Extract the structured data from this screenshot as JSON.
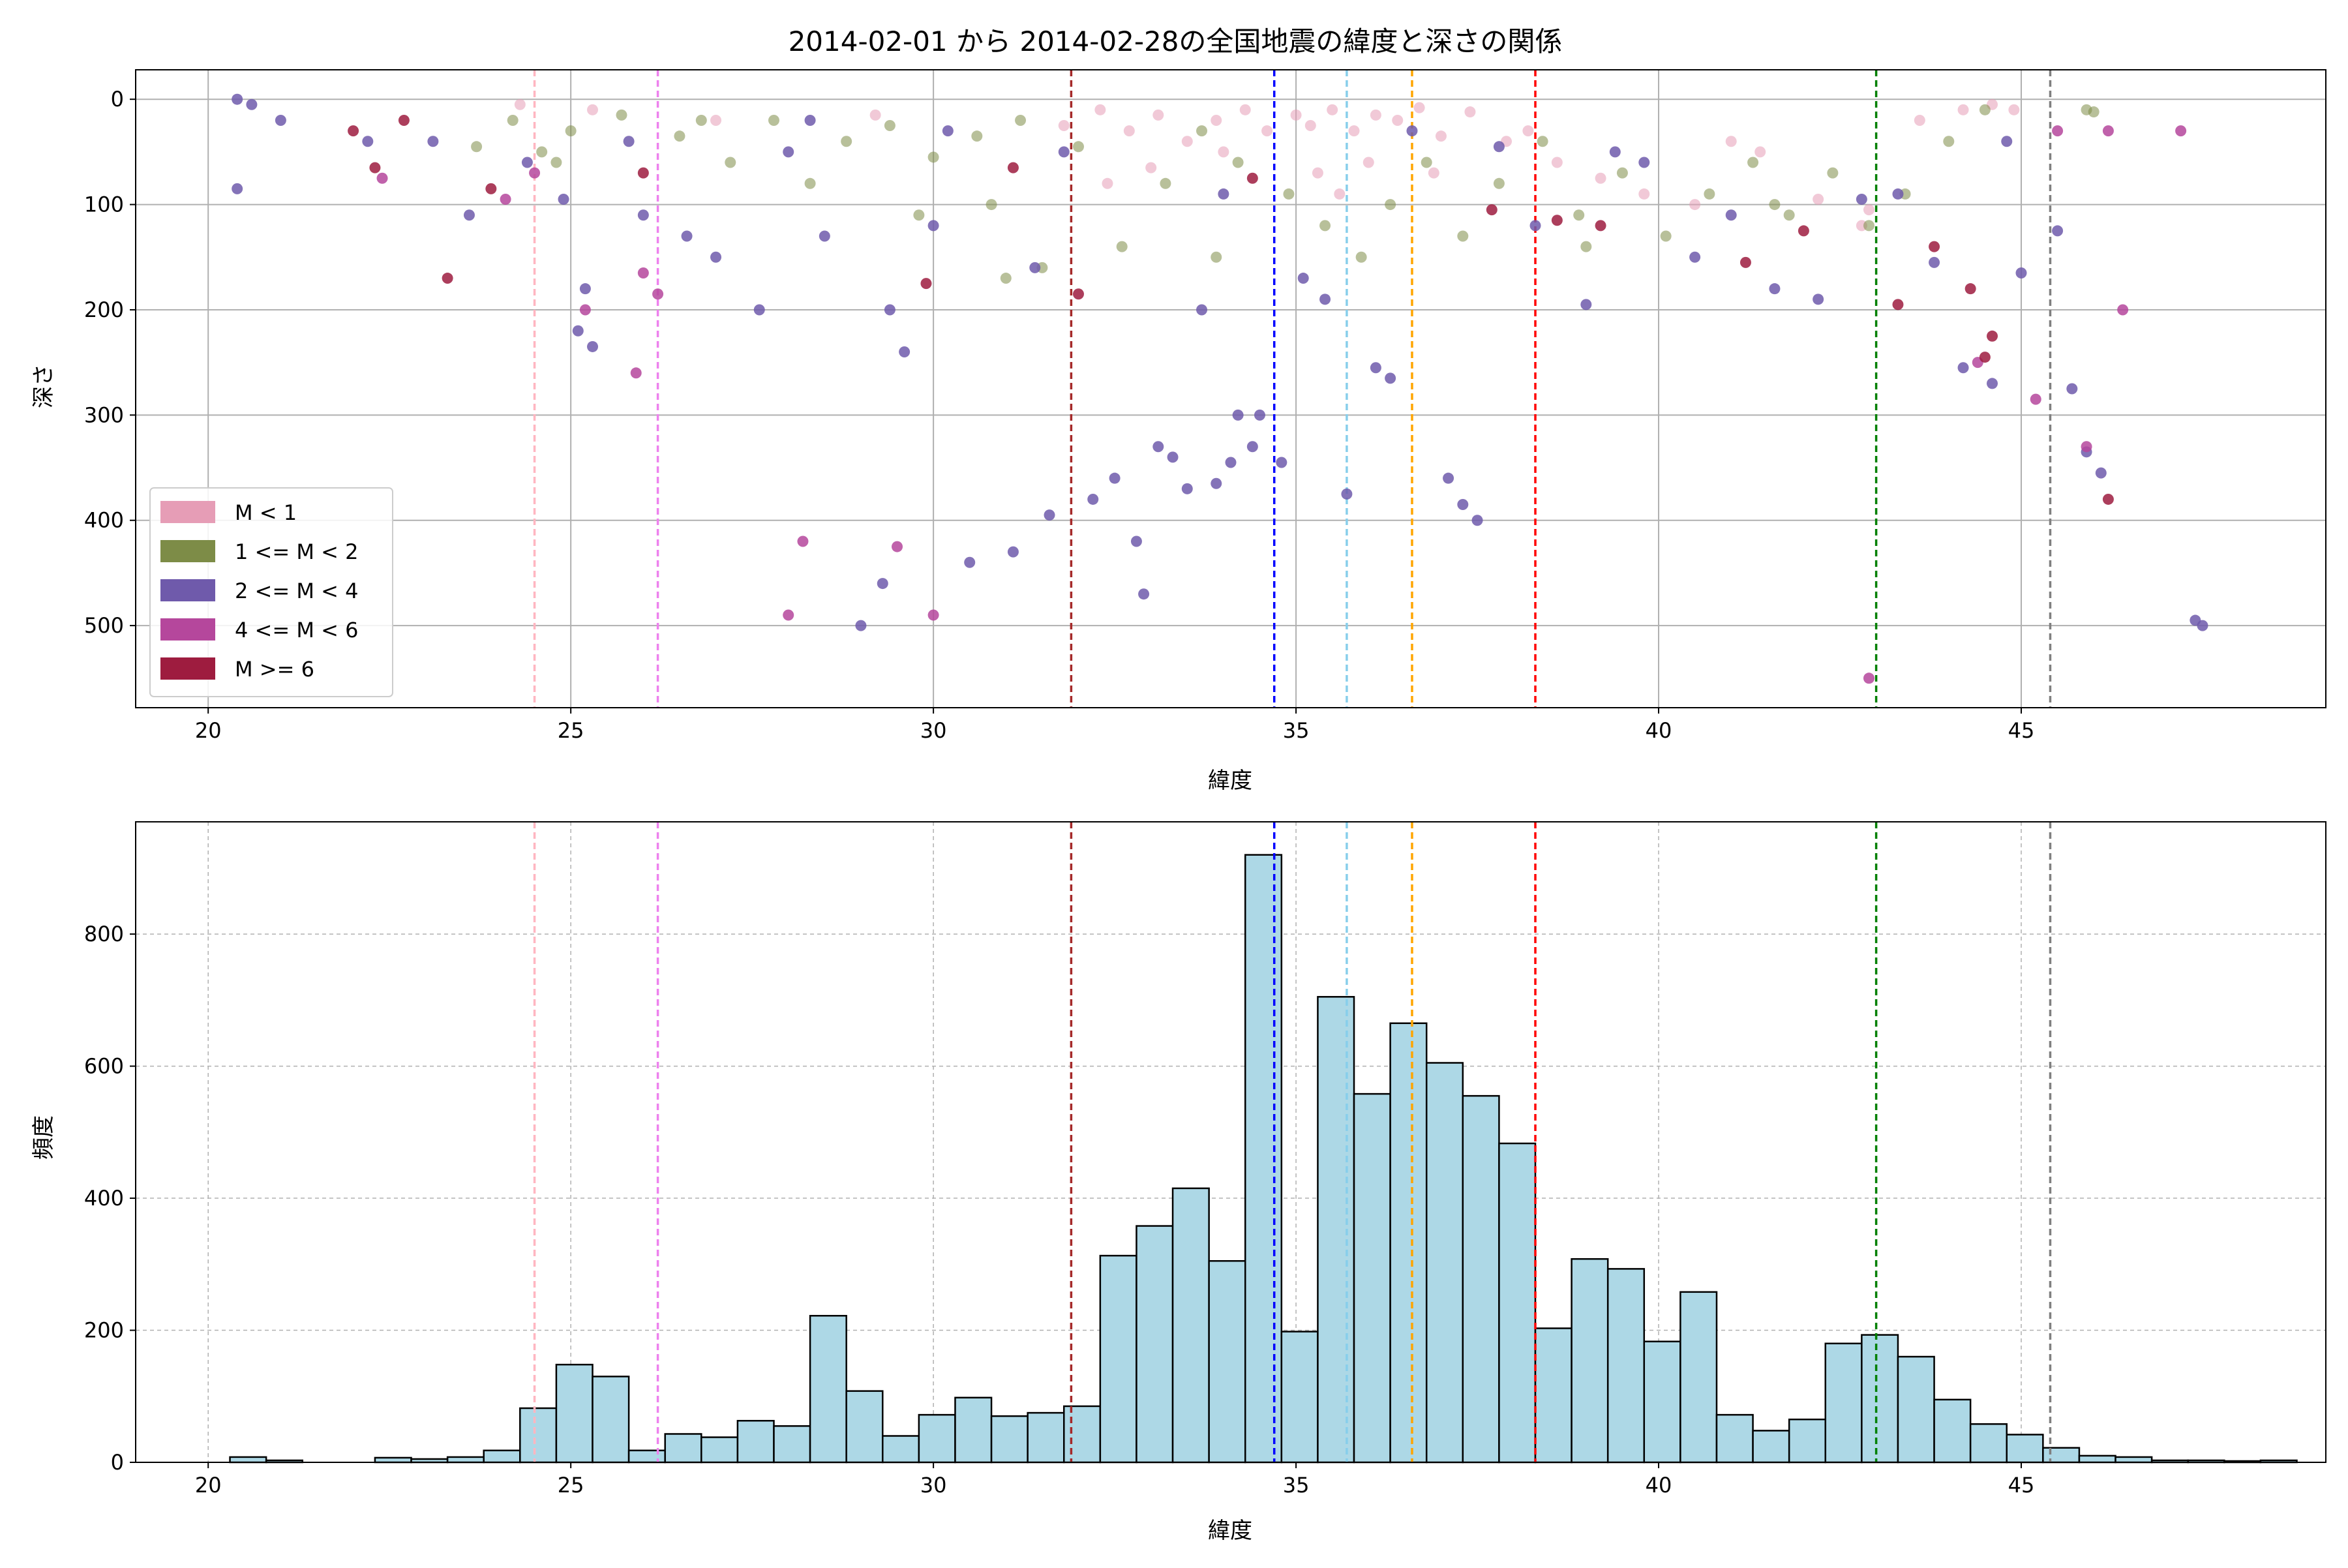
{
  "chart_data": [
    {
      "type": "scatter",
      "title": "2014-02-01 から 2014-02-28の全国地震の緯度と深さの関係",
      "xlabel": "緯度",
      "ylabel": "深さ",
      "xlim": [
        19.0,
        49.2
      ],
      "ylim": [
        578,
        -28
      ],
      "y_inverted": true,
      "xticks": [
        20,
        25,
        30,
        35,
        40,
        45
      ],
      "yticks": [
        0,
        100,
        200,
        300,
        400,
        500
      ],
      "grid": true,
      "legend_position": "lower-left",
      "legend": [
        {
          "label": "M < 1",
          "color": "#e69db6"
        },
        {
          "label": "1 <= M < 2",
          "color": "#7d8c47"
        },
        {
          "label": "2 <= M < 4",
          "color": "#6f5aab"
        },
        {
          "label": "4 <= M < 6",
          "color": "#b5479c"
        },
        {
          "label": "M >= 6",
          "color": "#9e1c3f"
        }
      ],
      "reference_lines": [
        {
          "x": 24.5,
          "color": "#ffb6c1"
        },
        {
          "x": 26.2,
          "color": "#ee82ee"
        },
        {
          "x": 31.9,
          "color": "#a52a2a"
        },
        {
          "x": 34.7,
          "color": "#0000ff"
        },
        {
          "x": 35.7,
          "color": "#87ceeb"
        },
        {
          "x": 36.6,
          "color": "#ffa500"
        },
        {
          "x": 38.3,
          "color": "#ff0000"
        },
        {
          "x": 43.0,
          "color": "#008000"
        },
        {
          "x": 45.4,
          "color": "#808080"
        }
      ],
      "series": [
        {
          "color": "#e69db6",
          "points": [
            [
              24.3,
              5
            ],
            [
              25.3,
              10
            ],
            [
              27.0,
              20
            ],
            [
              29.2,
              15
            ],
            [
              31.8,
              25
            ],
            [
              32.3,
              10
            ],
            [
              32.7,
              30
            ],
            [
              33.1,
              15
            ],
            [
              33.5,
              40
            ],
            [
              33.9,
              20
            ],
            [
              34.3,
              10
            ],
            [
              34.6,
              30
            ],
            [
              35.0,
              15
            ],
            [
              35.2,
              25
            ],
            [
              35.5,
              10
            ],
            [
              35.8,
              30
            ],
            [
              36.1,
              15
            ],
            [
              36.4,
              20
            ],
            [
              36.7,
              8
            ],
            [
              37.0,
              35
            ],
            [
              37.4,
              12
            ],
            [
              37.9,
              40
            ],
            [
              38.6,
              60
            ],
            [
              39.2,
              75
            ],
            [
              39.8,
              90
            ],
            [
              40.5,
              100
            ],
            [
              41.4,
              50
            ],
            [
              42.2,
              95
            ],
            [
              42.9,
              105
            ],
            [
              43.6,
              20
            ],
            [
              44.2,
              10
            ],
            [
              44.6,
              5
            ],
            [
              44.9,
              10
            ],
            [
              36.0,
              60
            ],
            [
              35.3,
              70
            ],
            [
              33.0,
              65
            ],
            [
              32.4,
              80
            ],
            [
              34.0,
              50
            ],
            [
              38.2,
              30
            ],
            [
              41.0,
              40
            ],
            [
              42.8,
              120
            ],
            [
              36.9,
              70
            ],
            [
              35.6,
              90
            ]
          ]
        },
        {
          "color": "#7d8c47",
          "points": [
            [
              23.7,
              45
            ],
            [
              24.2,
              20
            ],
            [
              24.6,
              50
            ],
            [
              25.0,
              30
            ],
            [
              25.7,
              15
            ],
            [
              26.5,
              35
            ],
            [
              27.2,
              60
            ],
            [
              27.8,
              20
            ],
            [
              28.3,
              80
            ],
            [
              28.8,
              40
            ],
            [
              29.4,
              25
            ],
            [
              30.0,
              55
            ],
            [
              30.6,
              35
            ],
            [
              31.2,
              20
            ],
            [
              31.5,
              160
            ],
            [
              31.0,
              170
            ],
            [
              32.0,
              45
            ],
            [
              32.6,
              140
            ],
            [
              33.2,
              80
            ],
            [
              33.7,
              30
            ],
            [
              34.2,
              60
            ],
            [
              34.9,
              90
            ],
            [
              35.4,
              120
            ],
            [
              35.9,
              150
            ],
            [
              36.3,
              100
            ],
            [
              36.8,
              60
            ],
            [
              37.3,
              130
            ],
            [
              37.8,
              80
            ],
            [
              38.4,
              40
            ],
            [
              38.9,
              110
            ],
            [
              39.5,
              70
            ],
            [
              40.1,
              130
            ],
            [
              40.7,
              90
            ],
            [
              41.3,
              60
            ],
            [
              41.8,
              110
            ],
            [
              42.4,
              70
            ],
            [
              42.9,
              120
            ],
            [
              43.4,
              90
            ],
            [
              44.0,
              40
            ],
            [
              44.5,
              10
            ],
            [
              45.9,
              10
            ],
            [
              46.0,
              12
            ],
            [
              29.8,
              110
            ],
            [
              30.8,
              100
            ],
            [
              33.9,
              150
            ],
            [
              39.0,
              140
            ],
            [
              41.6,
              100
            ],
            [
              26.8,
              20
            ],
            [
              24.8,
              60
            ]
          ]
        },
        {
          "color": "#6f5aab",
          "points": [
            [
              20.4,
              0
            ],
            [
              20.6,
              5
            ],
            [
              21.0,
              20
            ],
            [
              20.4,
              85
            ],
            [
              22.2,
              40
            ],
            [
              23.1,
              40
            ],
            [
              23.6,
              110
            ],
            [
              24.4,
              60
            ],
            [
              24.9,
              95
            ],
            [
              25.1,
              220
            ],
            [
              25.3,
              235
            ],
            [
              25.2,
              180
            ],
            [
              25.8,
              40
            ],
            [
              26.0,
              110
            ],
            [
              26.6,
              130
            ],
            [
              27.0,
              150
            ],
            [
              27.6,
              200
            ],
            [
              28.0,
              50
            ],
            [
              28.5,
              130
            ],
            [
              29.0,
              500
            ],
            [
              29.3,
              460
            ],
            [
              29.6,
              240
            ],
            [
              29.4,
              200
            ],
            [
              30.0,
              120
            ],
            [
              30.5,
              440
            ],
            [
              31.1,
              430
            ],
            [
              31.4,
              160
            ],
            [
              31.6,
              395
            ],
            [
              32.2,
              380
            ],
            [
              32.5,
              360
            ],
            [
              32.8,
              420
            ],
            [
              32.9,
              470
            ],
            [
              33.1,
              330
            ],
            [
              33.3,
              340
            ],
            [
              33.5,
              370
            ],
            [
              33.7,
              200
            ],
            [
              33.9,
              365
            ],
            [
              34.1,
              345
            ],
            [
              34.2,
              300
            ],
            [
              34.4,
              330
            ],
            [
              34.5,
              300
            ],
            [
              34.8,
              345
            ],
            [
              35.1,
              170
            ],
            [
              35.4,
              190
            ],
            [
              35.7,
              375
            ],
            [
              36.1,
              255
            ],
            [
              36.3,
              265
            ],
            [
              37.1,
              360
            ],
            [
              37.3,
              385
            ],
            [
              37.5,
              400
            ],
            [
              37.8,
              45
            ],
            [
              38.3,
              120
            ],
            [
              39.0,
              195
            ],
            [
              39.8,
              60
            ],
            [
              40.5,
              150
            ],
            [
              41.0,
              110
            ],
            [
              41.6,
              180
            ],
            [
              42.2,
              190
            ],
            [
              42.8,
              95
            ],
            [
              43.3,
              90
            ],
            [
              43.8,
              155
            ],
            [
              44.2,
              255
            ],
            [
              44.6,
              270
            ],
            [
              45.0,
              165
            ],
            [
              45.5,
              125
            ],
            [
              45.7,
              275
            ],
            [
              45.9,
              335
            ],
            [
              46.1,
              355
            ],
            [
              47.5,
              500
            ],
            [
              47.4,
              495
            ],
            [
              44.8,
              40
            ],
            [
              39.4,
              50
            ],
            [
              36.6,
              30
            ],
            [
              34.0,
              90
            ],
            [
              31.8,
              50
            ],
            [
              30.2,
              30
            ],
            [
              28.3,
              20
            ]
          ]
        },
        {
          "color": "#b5479c",
          "points": [
            [
              22.4,
              75
            ],
            [
              24.5,
              70
            ],
            [
              25.2,
              200
            ],
            [
              25.9,
              260
            ],
            [
              26.0,
              165
            ],
            [
              26.2,
              185
            ],
            [
              28.0,
              490
            ],
            [
              28.2,
              420
            ],
            [
              29.5,
              425
            ],
            [
              30.0,
              490
            ],
            [
              42.9,
              550
            ],
            [
              45.5,
              30
            ],
            [
              46.2,
              30
            ],
            [
              46.4,
              200
            ],
            [
              47.2,
              30
            ],
            [
              45.2,
              285
            ],
            [
              45.9,
              330
            ],
            [
              44.4,
              250
            ],
            [
              24.1,
              95
            ]
          ]
        },
        {
          "color": "#9e1c3f",
          "points": [
            [
              22.0,
              30
            ],
            [
              22.3,
              65
            ],
            [
              22.7,
              20
            ],
            [
              23.3,
              170
            ],
            [
              23.9,
              85
            ],
            [
              26.0,
              70
            ],
            [
              29.9,
              175
            ],
            [
              31.1,
              65
            ],
            [
              32.0,
              185
            ],
            [
              34.4,
              75
            ],
            [
              37.7,
              105
            ],
            [
              38.6,
              115
            ],
            [
              39.2,
              120
            ],
            [
              41.2,
              155
            ],
            [
              42.0,
              125
            ],
            [
              43.3,
              195
            ],
            [
              43.8,
              140
            ],
            [
              44.3,
              180
            ],
            [
              44.5,
              245
            ],
            [
              44.6,
              225
            ],
            [
              46.2,
              380
            ]
          ]
        }
      ]
    },
    {
      "type": "histogram",
      "title": "",
      "xlabel": "緯度",
      "ylabel": "頻度",
      "xlim": [
        19.0,
        49.2
      ],
      "ylim": [
        0,
        970
      ],
      "xticks": [
        20,
        25,
        30,
        35,
        40,
        45
      ],
      "yticks": [
        0,
        200,
        400,
        600,
        800
      ],
      "grid": true,
      "bar_color": "#add8e6",
      "bin_start": 20.3,
      "bin_width": 0.5,
      "values": [
        8,
        3,
        0,
        0,
        7,
        5,
        8,
        18,
        82,
        148,
        130,
        18,
        43,
        38,
        63,
        55,
        222,
        108,
        40,
        72,
        98,
        70,
        75,
        85,
        313,
        358,
        415,
        305,
        920,
        198,
        705,
        558,
        665,
        605,
        555,
        483,
        203,
        308,
        293,
        183,
        258,
        72,
        48,
        65,
        180,
        193,
        160,
        95,
        58,
        42,
        22,
        10,
        8,
        3,
        3,
        2,
        3
      ],
      "reference_lines": [
        {
          "x": 24.5,
          "color": "#ffb6c1"
        },
        {
          "x": 26.2,
          "color": "#ee82ee"
        },
        {
          "x": 31.9,
          "color": "#a52a2a"
        },
        {
          "x": 34.7,
          "color": "#0000ff"
        },
        {
          "x": 35.7,
          "color": "#87ceeb"
        },
        {
          "x": 36.6,
          "color": "#ffa500"
        },
        {
          "x": 38.3,
          "color": "#ff0000"
        },
        {
          "x": 43.0,
          "color": "#008000"
        },
        {
          "x": 45.4,
          "color": "#808080"
        }
      ]
    }
  ]
}
